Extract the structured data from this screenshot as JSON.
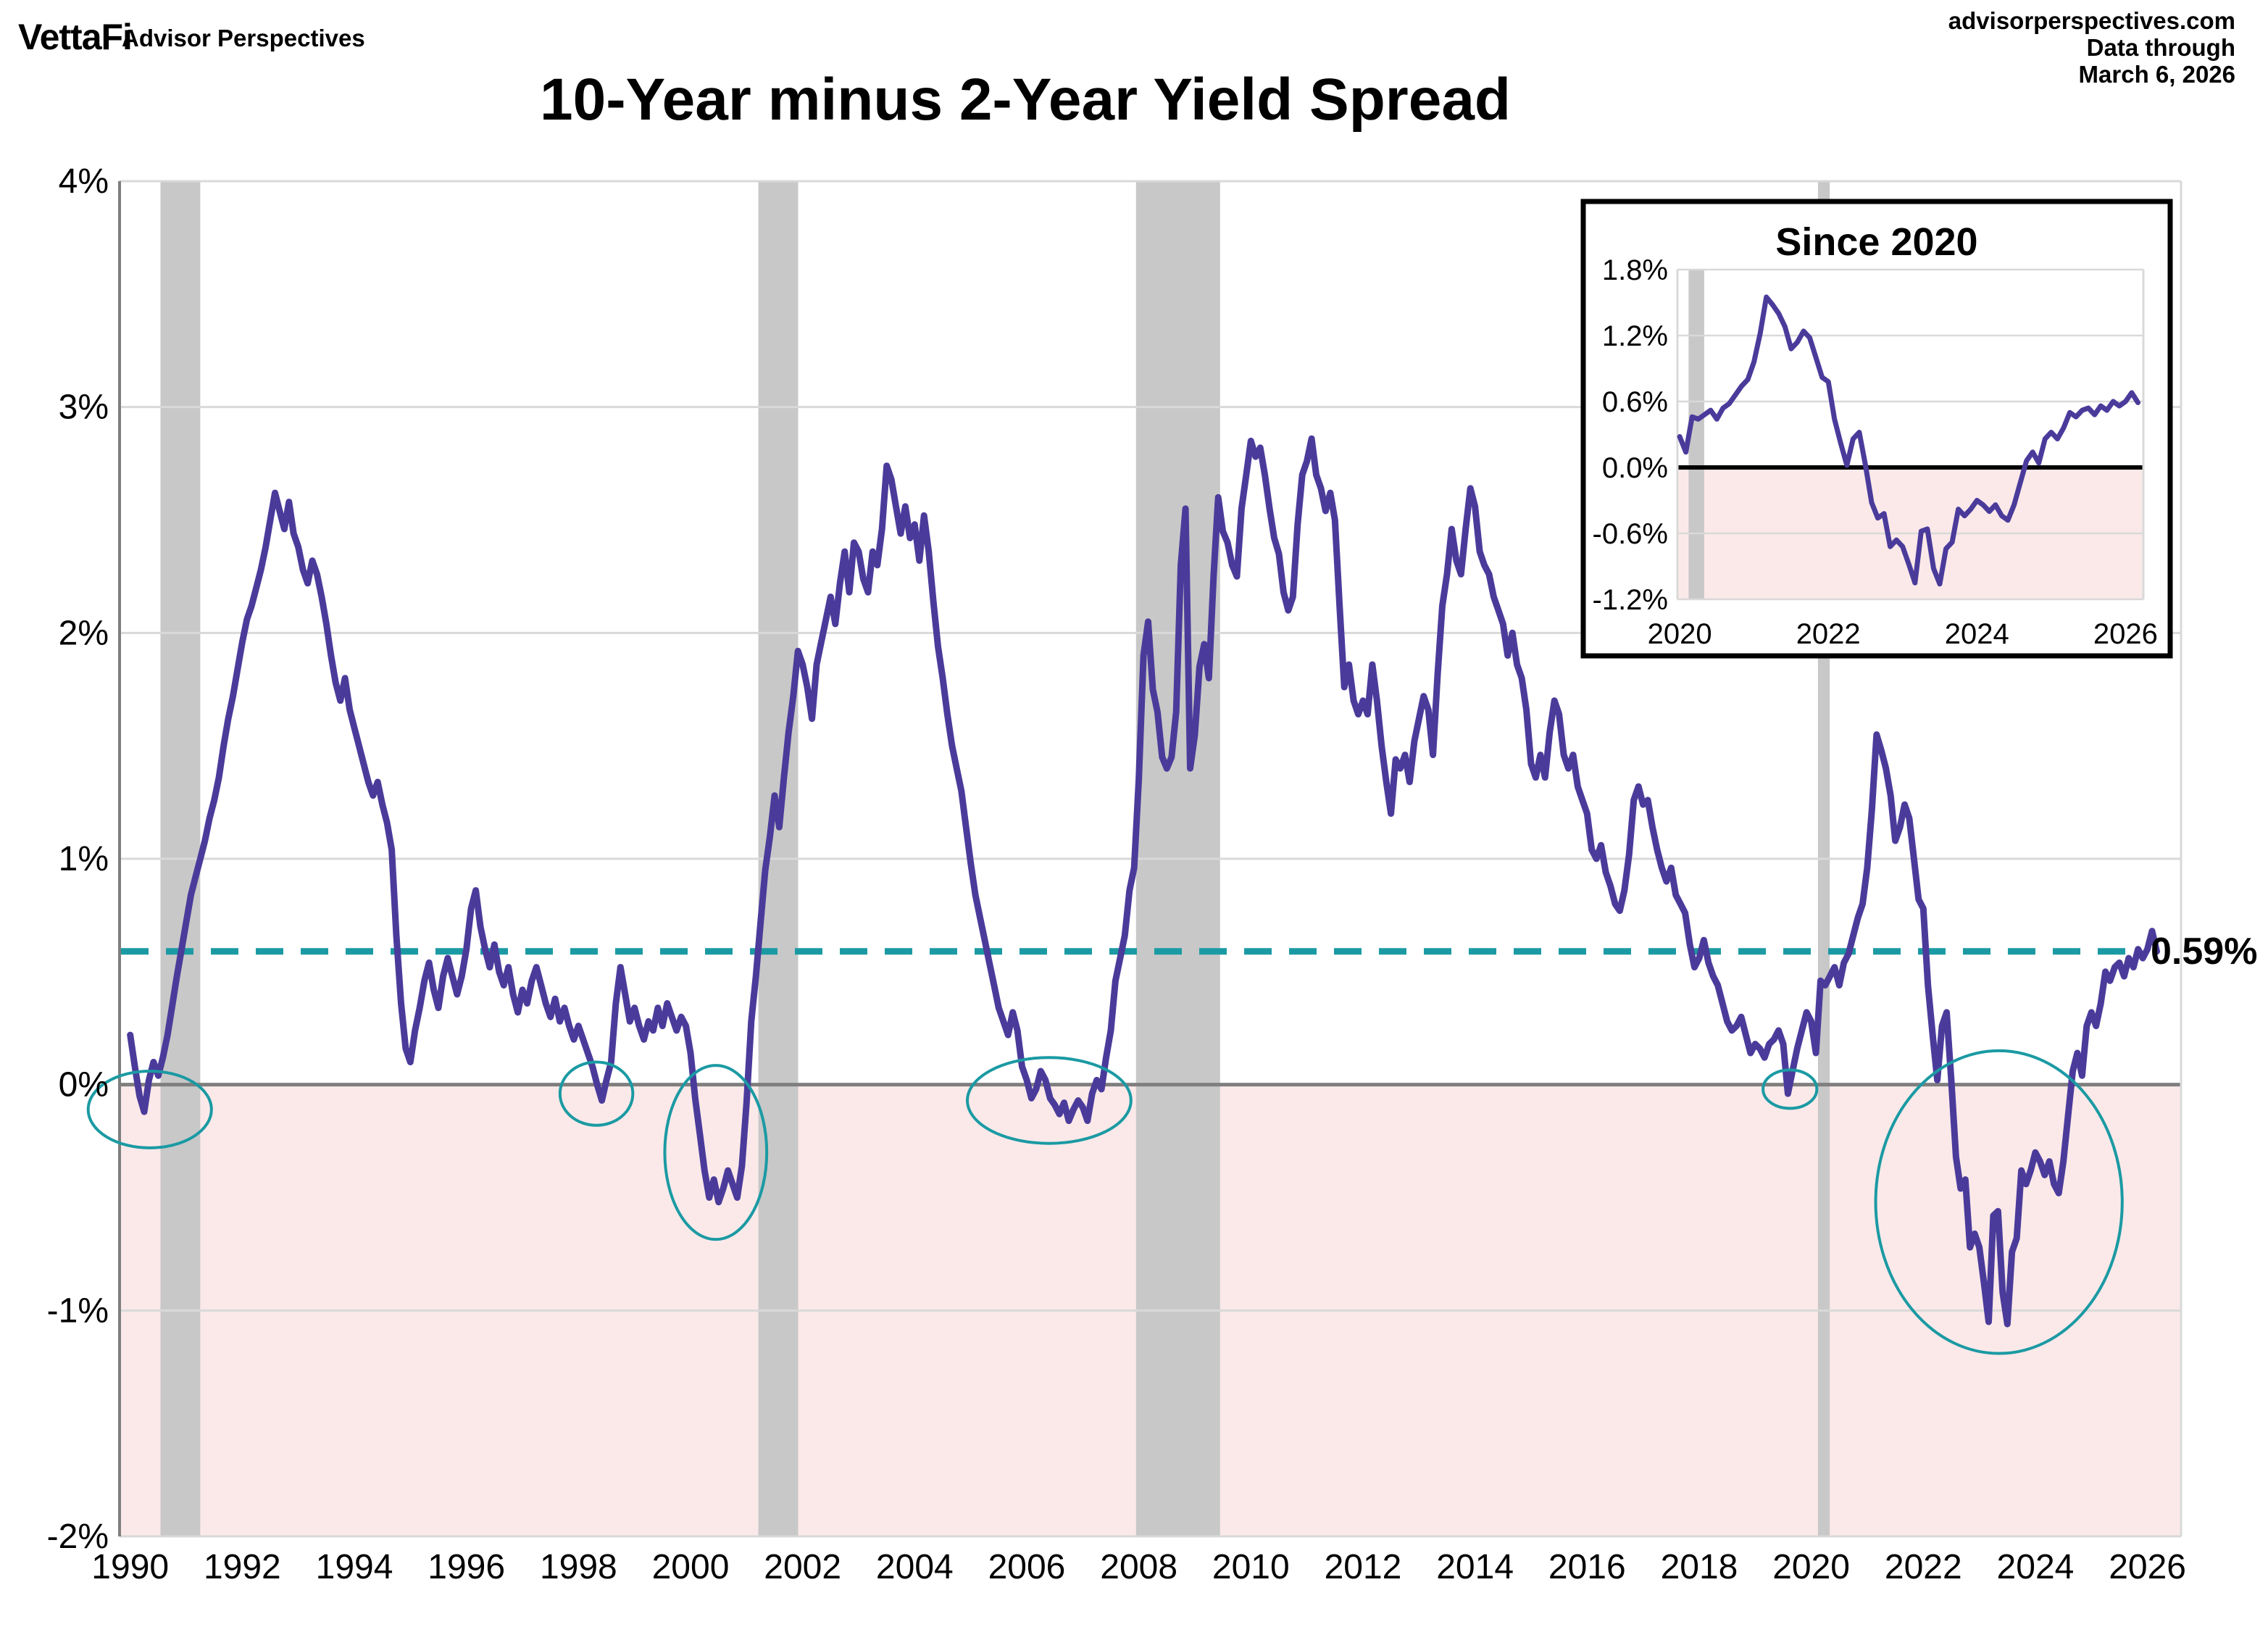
{
  "header": {
    "logo": "VettaFi",
    "tagline": "Advisor Perspectives",
    "title": "10-Year minus 2-Year Yield Spread",
    "source": "advisorperspectives.com",
    "data_through_label": "Data through",
    "data_through_date": "March 6, 2026"
  },
  "colors": {
    "line": "#4A3B9B",
    "teal": "#1B9AA3",
    "pink_fill": "#FBE9E9",
    "recession": "#C8C8C8",
    "grid": "#D9D9D9",
    "zero_line_main": "#7F7F7F",
    "inset_zero_line": "#000000",
    "inset_border": "#000000",
    "text": "#000000"
  },
  "chart_data": {
    "type": "line",
    "title": "10-Year minus 2-Year Yield Spread",
    "xlabel": "",
    "ylabel": "",
    "ylim": [
      -2,
      4
    ],
    "xlim": [
      1989.81,
      2026.6
    ],
    "grid": "horizontal",
    "legend_position": "none",
    "yticks": [
      {
        "value": 4,
        "label": "4%"
      },
      {
        "value": 3,
        "label": "3%"
      },
      {
        "value": 2,
        "label": "2%"
      },
      {
        "value": 1,
        "label": "1%"
      },
      {
        "value": 0,
        "label": "0%"
      },
      {
        "value": -1,
        "label": "-1%"
      },
      {
        "value": -2,
        "label": "-2%"
      }
    ],
    "xticks": [
      {
        "value": 1990,
        "label": "1990"
      },
      {
        "value": 1992,
        "label": "1992"
      },
      {
        "value": 1994,
        "label": "1994"
      },
      {
        "value": 1996,
        "label": "1996"
      },
      {
        "value": 1998,
        "label": "1998"
      },
      {
        "value": 2000,
        "label": "2000"
      },
      {
        "value": 2002,
        "label": "2002"
      },
      {
        "value": 2004,
        "label": "2004"
      },
      {
        "value": 2006,
        "label": "2006"
      },
      {
        "value": 2008,
        "label": "2008"
      },
      {
        "value": 2010,
        "label": "2010"
      },
      {
        "value": 2012,
        "label": "2012"
      },
      {
        "value": 2014,
        "label": "2014"
      },
      {
        "value": 2016,
        "label": "2016"
      },
      {
        "value": 2018,
        "label": "2018"
      },
      {
        "value": 2020,
        "label": "2020"
      },
      {
        "value": 2022,
        "label": "2022"
      },
      {
        "value": 2024,
        "label": "2024"
      },
      {
        "value": 2026,
        "label": "2026"
      }
    ],
    "zero_line": 0,
    "inversion_shading_below": 0,
    "recessions": [
      {
        "start": 1990.54,
        "end": 1991.25
      },
      {
        "start": 2001.21,
        "end": 2001.92
      },
      {
        "start": 2007.95,
        "end": 2009.45
      },
      {
        "start": 2020.12,
        "end": 2020.33
      }
    ],
    "reference_line": {
      "value": 0.59,
      "label": "0.59%",
      "style": "dashed"
    },
    "highlight_ellipses": [
      {
        "cx": 1990.35,
        "cy": -0.11,
        "rx": 1.1,
        "ry": 0.17
      },
      {
        "cx": 1998.32,
        "cy": -0.04,
        "rx": 0.65,
        "ry": 0.14
      },
      {
        "cx": 2000.45,
        "cy": -0.3,
        "rx": 0.91,
        "ry": 0.385
      },
      {
        "cx": 2006.4,
        "cy": -0.07,
        "rx": 1.46,
        "ry": 0.19
      },
      {
        "cx": 2019.62,
        "cy": -0.02,
        "rx": 0.48,
        "ry": 0.085
      },
      {
        "cx": 2023.35,
        "cy": -0.52,
        "rx": 2.2,
        "ry": 0.67
      }
    ],
    "series": {
      "name": "10-Year minus 2-Year Treasury yield spread",
      "unit": "%",
      "frequency": "monthly",
      "start_year": 1990,
      "start_month": 1,
      "end_label": "March 2026",
      "latest_value": 0.59,
      "values": [
        0.22,
        0.08,
        -0.05,
        -0.12,
        0.02,
        0.1,
        0.04,
        0.12,
        0.22,
        0.35,
        0.48,
        0.6,
        0.72,
        0.84,
        0.92,
        1.0,
        1.08,
        1.18,
        1.26,
        1.36,
        1.5,
        1.62,
        1.72,
        1.84,
        1.96,
        2.06,
        2.12,
        2.2,
        2.28,
        2.38,
        2.5,
        2.62,
        2.54,
        2.46,
        2.58,
        2.44,
        2.38,
        2.28,
        2.22,
        2.32,
        2.26,
        2.16,
        2.04,
        1.9,
        1.78,
        1.7,
        1.8,
        1.66,
        1.58,
        1.5,
        1.42,
        1.34,
        1.28,
        1.34,
        1.24,
        1.16,
        1.04,
        0.66,
        0.36,
        0.16,
        0.1,
        0.24,
        0.34,
        0.46,
        0.54,
        0.42,
        0.34,
        0.48,
        0.56,
        0.48,
        0.4,
        0.48,
        0.6,
        0.78,
        0.86,
        0.7,
        0.6,
        0.52,
        0.62,
        0.5,
        0.44,
        0.52,
        0.4,
        0.32,
        0.42,
        0.36,
        0.46,
        0.52,
        0.44,
        0.36,
        0.3,
        0.38,
        0.28,
        0.34,
        0.26,
        0.2,
        0.26,
        0.2,
        0.14,
        0.08,
        0.0,
        -0.07,
        0.02,
        0.1,
        0.36,
        0.52,
        0.4,
        0.28,
        0.34,
        0.26,
        0.2,
        0.28,
        0.24,
        0.34,
        0.26,
        0.36,
        0.3,
        0.24,
        0.3,
        0.26,
        0.14,
        -0.06,
        -0.22,
        -0.38,
        -0.5,
        -0.42,
        -0.52,
        -0.46,
        -0.38,
        -0.44,
        -0.5,
        -0.36,
        -0.08,
        0.28,
        0.48,
        0.72,
        0.95,
        1.1,
        1.28,
        1.14,
        1.36,
        1.56,
        1.72,
        1.92,
        1.86,
        1.76,
        1.62,
        1.86,
        1.96,
        2.06,
        2.16,
        2.04,
        2.22,
        2.36,
        2.18,
        2.4,
        2.36,
        2.24,
        2.18,
        2.36,
        2.3,
        2.46,
        2.74,
        2.68,
        2.56,
        2.44,
        2.56,
        2.42,
        2.48,
        2.32,
        2.52,
        2.36,
        2.14,
        1.94,
        1.8,
        1.64,
        1.5,
        1.4,
        1.3,
        1.14,
        0.98,
        0.84,
        0.74,
        0.64,
        0.54,
        0.44,
        0.34,
        0.28,
        0.22,
        0.32,
        0.24,
        0.08,
        0.02,
        -0.06,
        -0.02,
        0.06,
        0.02,
        -0.06,
        -0.09,
        -0.13,
        -0.08,
        -0.16,
        -0.11,
        -0.07,
        -0.1,
        -0.16,
        -0.04,
        0.02,
        -0.02,
        0.12,
        0.24,
        0.46,
        0.56,
        0.66,
        0.86,
        0.96,
        1.35,
        1.9,
        2.05,
        1.75,
        1.65,
        1.45,
        1.4,
        1.45,
        1.65,
        2.3,
        2.55,
        1.4,
        1.55,
        1.85,
        1.95,
        1.8,
        2.25,
        2.6,
        2.45,
        2.4,
        2.3,
        2.25,
        2.55,
        2.7,
        2.85,
        2.78,
        2.82,
        2.7,
        2.55,
        2.42,
        2.35,
        2.18,
        2.1,
        2.16,
        2.48,
        2.7,
        2.76,
        2.86,
        2.7,
        2.64,
        2.54,
        2.62,
        2.5,
        2.12,
        1.76,
        1.86,
        1.7,
        1.64,
        1.7,
        1.64,
        1.86,
        1.7,
        1.5,
        1.34,
        1.2,
        1.44,
        1.4,
        1.46,
        1.34,
        1.52,
        1.62,
        1.72,
        1.66,
        1.46,
        1.82,
        2.12,
        2.26,
        2.46,
        2.32,
        2.26,
        2.46,
        2.64,
        2.56,
        2.36,
        2.3,
        2.26,
        2.16,
        2.1,
        2.04,
        1.9,
        2.0,
        1.86,
        1.8,
        1.66,
        1.42,
        1.36,
        1.46,
        1.36,
        1.56,
        1.7,
        1.64,
        1.46,
        1.4,
        1.46,
        1.32,
        1.26,
        1.2,
        1.04,
        1.0,
        1.06,
        0.94,
        0.88,
        0.8,
        0.77,
        0.86,
        1.02,
        1.26,
        1.32,
        1.24,
        1.26,
        1.14,
        1.04,
        0.96,
        0.9,
        0.96,
        0.84,
        0.8,
        0.76,
        0.62,
        0.52,
        0.56,
        0.64,
        0.54,
        0.48,
        0.44,
        0.36,
        0.28,
        0.24,
        0.26,
        0.3,
        0.22,
        0.14,
        0.18,
        0.16,
        0.12,
        0.18,
        0.2,
        0.24,
        0.18,
        -0.04,
        0.06,
        0.16,
        0.24,
        0.32,
        0.28,
        0.14,
        0.46,
        0.44,
        0.48,
        0.52,
        0.44,
        0.54,
        0.58,
        0.66,
        0.74,
        0.8,
        0.96,
        1.22,
        1.55,
        1.48,
        1.4,
        1.28,
        1.08,
        1.14,
        1.24,
        1.18,
        1.0,
        0.82,
        0.78,
        0.44,
        0.22,
        0.02,
        0.26,
        0.32,
        0.02,
        -0.32,
        -0.46,
        -0.42,
        -0.72,
        -0.66,
        -0.72,
        -0.88,
        -1.05,
        -0.58,
        -0.56,
        -0.92,
        -1.06,
        -0.74,
        -0.68,
        -0.38,
        -0.44,
        -0.38,
        -0.3,
        -0.34,
        -0.4,
        -0.34,
        -0.44,
        -0.48,
        -0.34,
        -0.14,
        0.06,
        0.14,
        0.04,
        0.26,
        0.32,
        0.26,
        0.36,
        0.5,
        0.46,
        0.52,
        0.54,
        0.48,
        0.56,
        0.52,
        0.6,
        0.56,
        0.6,
        0.68,
        0.59
      ]
    },
    "inset": {
      "title": "Since 2020",
      "ylim": [
        -1.2,
        1.8
      ],
      "xlim": [
        2019.97,
        2026.24
      ],
      "series_source": "same series, 2020 onward",
      "yticks": [
        {
          "value": 1.8,
          "label": "1.8%"
        },
        {
          "value": 1.2,
          "label": "1.2%"
        },
        {
          "value": 0.6,
          "label": "0.6%"
        },
        {
          "value": 0.0,
          "label": "0.0%"
        },
        {
          "value": -0.6,
          "label": "-0.6%"
        },
        {
          "value": -1.2,
          "label": "-1.2%"
        }
      ],
      "xticks": [
        {
          "value": 2020,
          "label": "2020"
        },
        {
          "value": 2022,
          "label": "2022"
        },
        {
          "value": 2024,
          "label": "2024"
        },
        {
          "value": 2026,
          "label": "2026"
        }
      ],
      "recessions": [
        {
          "start": 2020.12,
          "end": 2020.33
        }
      ]
    }
  }
}
